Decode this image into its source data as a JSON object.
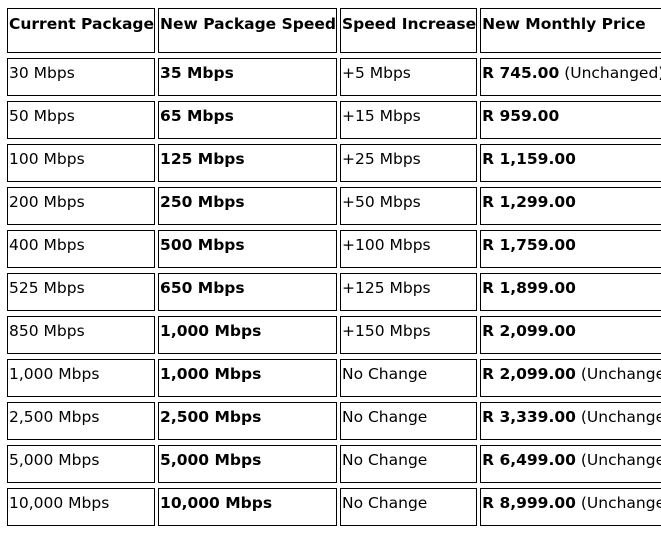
{
  "headers": [
    "Current Package",
    "New Package Speed",
    "Speed Increase",
    "New Monthly Price"
  ],
  "rows": [
    {
      "current": "30 Mbps",
      "new_speed": "35 Mbps",
      "increase": "+5 Mbps",
      "price": "R 745.00",
      "note": " (Unchanged)"
    },
    {
      "current": "50 Mbps",
      "new_speed": "65 Mbps",
      "increase": "+15 Mbps",
      "price": "R 959.00",
      "note": ""
    },
    {
      "current": "100 Mbps",
      "new_speed": "125 Mbps",
      "increase": "+25 Mbps",
      "price": "R 1,159.00",
      "note": ""
    },
    {
      "current": "200 Mbps",
      "new_speed": "250 Mbps",
      "increase": "+50 Mbps",
      "price": "R 1,299.00",
      "note": ""
    },
    {
      "current": "400 Mbps",
      "new_speed": "500 Mbps",
      "increase": "+100 Mbps",
      "price": "R 1,759.00",
      "note": ""
    },
    {
      "current": "525 Mbps",
      "new_speed": "650 Mbps",
      "increase": "+125 Mbps",
      "price": "R 1,899.00",
      "note": ""
    },
    {
      "current": "850 Mbps",
      "new_speed": "1,000 Mbps",
      "increase": "+150 Mbps",
      "price": "R 2,099.00",
      "note": ""
    },
    {
      "current": "1,000 Mbps",
      "new_speed": "1,000 Mbps",
      "increase": "No Change",
      "price": "R 2,099.00",
      "note": " (Unchanged)"
    },
    {
      "current": "2,500 Mbps",
      "new_speed": "2,500 Mbps",
      "increase": "No Change",
      "price": "R 3,339.00",
      "note": " (Unchanged)"
    },
    {
      "current": "5,000 Mbps",
      "new_speed": "5,000 Mbps",
      "increase": "No Change",
      "price": "R 6,499.00",
      "note": " (Unchanged)"
    },
    {
      "current": "10,000 Mbps",
      "new_speed": "10,000 Mbps",
      "increase": "No Change",
      "price": "R 8,999.00",
      "note": " (Unchanged)"
    }
  ],
  "colors": {
    "border": "#000000",
    "text": "#000000",
    "background": "#ffffff"
  }
}
